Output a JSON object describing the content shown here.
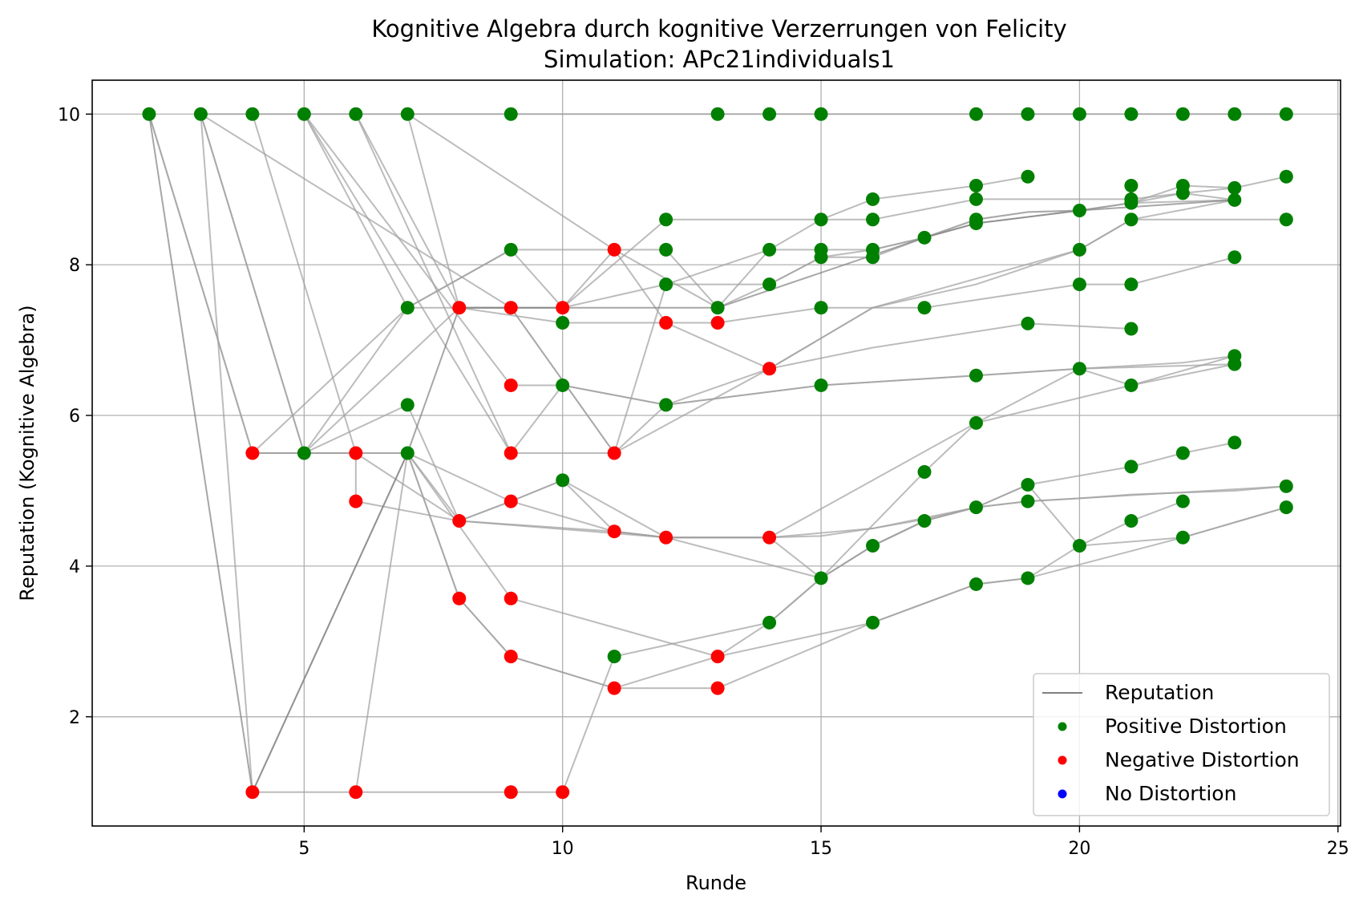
{
  "chart_data": {
    "type": "scatter",
    "title": "Kognitive Algebra durch kognitive Verzerrungen von Felicity",
    "subtitle": "Simulation: APc21individuals1",
    "xlabel": "Runde",
    "ylabel": "Reputation (Kognitive Algebra)",
    "xlim": [
      0.9,
      25.05
    ],
    "ylim": [
      0.55,
      10.45
    ],
    "xticks": [
      5,
      10,
      15,
      20,
      25
    ],
    "yticks": [
      2,
      4,
      6,
      8,
      10
    ],
    "grid": true,
    "legend_position": "bottom-right",
    "colors": {
      "reputation": "#808080",
      "positive": "#008000",
      "negative": "#ff0000",
      "none": "#0000ff"
    },
    "legend": [
      {
        "label": "Reputation",
        "kind": "line",
        "color": "#808080"
      },
      {
        "label": "Positive Distortion",
        "kind": "dot",
        "color": "#008000"
      },
      {
        "label": "Negative Distortion",
        "kind": "dot",
        "color": "#ff0000"
      },
      {
        "label": "No Distortion",
        "kind": "dot",
        "color": "#0000ff"
      }
    ],
    "trajectories": [
      [
        [
          2,
          10
        ],
        [
          4,
          5.5
        ],
        [
          7,
          7.43
        ],
        [
          9,
          8.2
        ],
        [
          11,
          8.2
        ],
        [
          12,
          8.2
        ],
        [
          13,
          7.43
        ],
        [
          14,
          8.2
        ],
        [
          15,
          8.6
        ],
        [
          16,
          8.87
        ],
        [
          18,
          9.05
        ],
        [
          19,
          9.17
        ]
      ],
      [
        [
          3,
          10
        ],
        [
          4,
          10
        ],
        [
          5,
          10
        ],
        [
          6,
          10
        ],
        [
          7,
          10
        ],
        [
          9,
          10
        ],
        [
          13,
          10
        ],
        [
          14,
          10
        ],
        [
          15,
          10
        ],
        [
          18,
          10
        ],
        [
          19,
          10
        ],
        [
          20,
          10
        ],
        [
          21,
          10
        ],
        [
          22,
          10
        ],
        [
          23,
          10
        ],
        [
          24,
          10
        ]
      ],
      [
        [
          2,
          10
        ],
        [
          4,
          5.5
        ],
        [
          6,
          5.5
        ],
        [
          8,
          4.6
        ],
        [
          9,
          4.86
        ],
        [
          10,
          5.14
        ],
        [
          12,
          4.38
        ],
        [
          14,
          4.38
        ],
        [
          15,
          4.4
        ],
        [
          16,
          4.5
        ],
        [
          17,
          4.62
        ],
        [
          18,
          4.78
        ],
        [
          19,
          4.86
        ],
        [
          20,
          4.9
        ],
        [
          21,
          4.95
        ],
        [
          23,
          5.0
        ],
        [
          24,
          5.06
        ]
      ],
      [
        [
          3,
          10
        ],
        [
          5,
          5.5
        ],
        [
          7,
          6.14
        ],
        [
          8,
          4.6
        ],
        [
          11,
          4.46
        ],
        [
          12,
          4.38
        ],
        [
          14,
          4.38
        ],
        [
          15,
          3.84
        ],
        [
          16,
          4.27
        ],
        [
          17,
          4.6
        ],
        [
          18,
          4.78
        ],
        [
          19,
          5.08
        ],
        [
          21,
          5.32
        ],
        [
          22,
          5.5
        ],
        [
          23,
          5.64
        ]
      ],
      [
        [
          3,
          10
        ],
        [
          4,
          1.0
        ],
        [
          6,
          1.0
        ],
        [
          9,
          1.0
        ],
        [
          10,
          1.0
        ],
        [
          11,
          2.8
        ],
        [
          14,
          3.25
        ],
        [
          15,
          3.84
        ],
        [
          16,
          4.27
        ],
        [
          17,
          4.6
        ]
      ],
      [
        [
          3,
          10
        ],
        [
          5,
          5.5
        ],
        [
          8,
          7.43
        ],
        [
          10,
          7.43
        ],
        [
          12,
          8.6
        ],
        [
          15,
          8.6
        ],
        [
          16,
          8.6
        ],
        [
          18,
          8.87
        ],
        [
          19,
          8.87
        ],
        [
          21,
          8.87
        ],
        [
          22,
          8.95
        ],
        [
          23,
          9.02
        ]
      ],
      [
        [
          4,
          10
        ],
        [
          6,
          5.5
        ],
        [
          7,
          5.5
        ],
        [
          8,
          3.57
        ],
        [
          9,
          2.8
        ],
        [
          11,
          2.38
        ],
        [
          13,
          2.8
        ],
        [
          14,
          3.25
        ],
        [
          15,
          3.84
        ],
        [
          16,
          4.27
        ],
        [
          17,
          4.6
        ],
        [
          18,
          4.78
        ],
        [
          19,
          5.08
        ],
        [
          20,
          4.27
        ],
        [
          21,
          4.6
        ],
        [
          22,
          4.86
        ]
      ],
      [
        [
          5,
          10
        ],
        [
          9,
          6.4
        ],
        [
          10,
          6.4
        ],
        [
          12,
          6.14
        ],
        [
          15,
          6.4
        ],
        [
          18,
          6.53
        ],
        [
          20,
          6.62
        ],
        [
          23,
          6.68
        ]
      ],
      [
        [
          5,
          10
        ],
        [
          7,
          7.43
        ],
        [
          9,
          7.43
        ],
        [
          11,
          5.5
        ],
        [
          12,
          7.74
        ],
        [
          14,
          7.74
        ],
        [
          15,
          8.1
        ],
        [
          16,
          8.2
        ],
        [
          17,
          8.36
        ],
        [
          18,
          8.55
        ],
        [
          20,
          8.72
        ],
        [
          21,
          8.82
        ],
        [
          23,
          8.86
        ]
      ],
      [
        [
          6,
          10
        ],
        [
          8,
          7.43
        ],
        [
          10,
          7.23
        ],
        [
          12,
          7.23
        ],
        [
          13,
          7.23
        ],
        [
          15,
          7.43
        ],
        [
          17,
          7.43
        ],
        [
          20,
          7.74
        ],
        [
          21,
          7.74
        ],
        [
          23,
          8.1
        ]
      ],
      [
        [
          6,
          10
        ],
        [
          9,
          5.5
        ],
        [
          10,
          6.4
        ],
        [
          12,
          6.14
        ],
        [
          15,
          6.4
        ],
        [
          18,
          6.53
        ],
        [
          20,
          6.62
        ],
        [
          22,
          6.7
        ],
        [
          23,
          6.79
        ]
      ],
      [
        [
          7,
          10
        ],
        [
          8,
          7.43
        ],
        [
          9,
          7.43
        ],
        [
          10,
          7.43
        ],
        [
          11,
          8.2
        ],
        [
          13,
          7.43
        ],
        [
          14,
          7.74
        ],
        [
          15,
          8.1
        ],
        [
          16,
          8.1
        ],
        [
          17,
          8.36
        ],
        [
          18,
          8.6
        ],
        [
          19,
          8.7
        ],
        [
          20,
          8.72
        ],
        [
          21,
          8.82
        ],
        [
          22,
          9.05
        ],
        [
          23,
          9.02
        ],
        [
          24,
          9.17
        ]
      ],
      [
        [
          5,
          10
        ],
        [
          9,
          5.5
        ],
        [
          11,
          5.5
        ],
        [
          12,
          6.14
        ],
        [
          14,
          6.62
        ],
        [
          16,
          6.9
        ],
        [
          19,
          7.22
        ],
        [
          21,
          7.15
        ]
      ],
      [
        [
          4,
          1.0
        ],
        [
          7,
          5.5
        ],
        [
          9,
          4.86
        ],
        [
          11,
          4.46
        ],
        [
          12,
          4.38
        ],
        [
          14,
          4.38
        ],
        [
          18,
          5.9
        ],
        [
          21,
          6.4
        ],
        [
          23,
          6.79
        ]
      ],
      [
        [
          7,
          5.5
        ],
        [
          9,
          3.57
        ],
        [
          13,
          2.8
        ],
        [
          16,
          3.25
        ],
        [
          18,
          3.76
        ],
        [
          19,
          3.84
        ],
        [
          20,
          4.27
        ],
        [
          22,
          4.38
        ],
        [
          24,
          4.78
        ]
      ],
      [
        [
          4,
          5.5
        ],
        [
          5,
          5.5
        ],
        [
          7,
          5.5
        ],
        [
          8,
          4.6
        ],
        [
          12,
          4.38
        ],
        [
          15,
          3.84
        ],
        [
          17,
          5.25
        ],
        [
          18,
          5.9
        ],
        [
          20,
          6.62
        ],
        [
          21,
          6.4
        ],
        [
          23,
          6.68
        ]
      ],
      [
        [
          6,
          1.0
        ],
        [
          7,
          5.5
        ],
        [
          8,
          3.57
        ],
        [
          9,
          2.8
        ],
        [
          11,
          2.38
        ],
        [
          13,
          2.38
        ],
        [
          16,
          3.25
        ],
        [
          18,
          3.76
        ],
        [
          19,
          3.84
        ],
        [
          22,
          4.38
        ],
        [
          24,
          4.78
        ]
      ],
      [
        [
          3,
          10
        ],
        [
          9,
          7.43
        ],
        [
          11,
          5.5
        ],
        [
          14,
          6.62
        ],
        [
          16,
          7.43
        ],
        [
          18,
          7.74
        ],
        [
          20,
          8.2
        ],
        [
          21,
          8.6
        ],
        [
          24,
          8.6
        ]
      ],
      [
        [
          4,
          5.5
        ],
        [
          5,
          5.5
        ],
        [
          7,
          7.43
        ],
        [
          9,
          8.2
        ],
        [
          10,
          7.43
        ],
        [
          12,
          7.74
        ],
        [
          14,
          8.2
        ],
        [
          15,
          8.2
        ],
        [
          16,
          8.2
        ],
        [
          17,
          8.36
        ],
        [
          18,
          8.6
        ],
        [
          19,
          8.7
        ],
        [
          20,
          8.72
        ],
        [
          21,
          8.82
        ],
        [
          22,
          8.95
        ],
        [
          23,
          8.86
        ]
      ],
      [
        [
          5,
          5.5
        ],
        [
          6,
          5.5
        ],
        [
          6,
          4.86
        ],
        [
          8,
          4.6
        ],
        [
          9,
          4.86
        ],
        [
          10,
          5.14
        ],
        [
          11,
          4.46
        ],
        [
          12,
          4.38
        ],
        [
          14,
          4.38
        ],
        [
          16,
          4.5
        ],
        [
          18,
          4.78
        ],
        [
          19,
          4.86
        ],
        [
          24,
          5.06
        ]
      ],
      [
        [
          7,
          10
        ],
        [
          11,
          8.2
        ],
        [
          12,
          7.23
        ],
        [
          14,
          6.62
        ],
        [
          16,
          7.43
        ],
        [
          20,
          8.2
        ],
        [
          21,
          8.6
        ],
        [
          23,
          8.86
        ]
      ]
    ],
    "reputation_line": [
      [
        2,
        10
      ],
      [
        4,
        1.0
      ],
      [
        7,
        5.5
      ],
      [
        8,
        7.43
      ],
      [
        13,
        7.43
      ],
      [
        17,
        8.36
      ],
      [
        18,
        8.55
      ],
      [
        20,
        8.72
      ],
      [
        23,
        8.86
      ]
    ],
    "positive_points": [
      [
        2,
        10
      ],
      [
        3,
        10
      ],
      [
        4,
        10
      ],
      [
        5,
        10
      ],
      [
        6,
        10
      ],
      [
        7,
        10
      ],
      [
        9,
        10
      ],
      [
        13,
        10
      ],
      [
        14,
        10
      ],
      [
        15,
        10
      ],
      [
        18,
        10
      ],
      [
        19,
        10
      ],
      [
        20,
        10
      ],
      [
        21,
        10
      ],
      [
        22,
        10
      ],
      [
        23,
        10
      ],
      [
        24,
        10
      ],
      [
        19,
        9.17
      ],
      [
        24,
        9.17
      ],
      [
        18,
        9.05
      ],
      [
        21,
        9.05
      ],
      [
        22,
        9.05
      ],
      [
        23,
        9.02
      ],
      [
        22,
        8.95
      ],
      [
        16,
        8.87
      ],
      [
        18,
        8.87
      ],
      [
        21,
        8.87
      ],
      [
        21,
        8.82
      ],
      [
        23,
        8.86
      ],
      [
        20,
        8.72
      ],
      [
        12,
        8.6
      ],
      [
        15,
        8.6
      ],
      [
        16,
        8.6
      ],
      [
        18,
        8.6
      ],
      [
        18,
        8.55
      ],
      [
        21,
        8.6
      ],
      [
        24,
        8.6
      ],
      [
        17,
        8.36
      ],
      [
        9,
        8.2
      ],
      [
        12,
        8.2
      ],
      [
        14,
        8.2
      ],
      [
        15,
        8.2
      ],
      [
        16,
        8.2
      ],
      [
        20,
        8.2
      ],
      [
        15,
        8.1
      ],
      [
        16,
        8.1
      ],
      [
        23,
        8.1
      ],
      [
        12,
        7.74
      ],
      [
        14,
        7.74
      ],
      [
        20,
        7.74
      ],
      [
        21,
        7.74
      ],
      [
        7,
        7.43
      ],
      [
        13,
        7.43
      ],
      [
        15,
        7.43
      ],
      [
        17,
        7.43
      ],
      [
        10,
        7.23
      ],
      [
        19,
        7.22
      ],
      [
        21,
        7.15
      ],
      [
        23,
        6.79
      ],
      [
        23,
        6.68
      ],
      [
        20,
        6.62
      ],
      [
        18,
        6.53
      ],
      [
        10,
        6.4
      ],
      [
        15,
        6.4
      ],
      [
        21,
        6.4
      ],
      [
        7,
        6.14
      ],
      [
        12,
        6.14
      ],
      [
        18,
        5.9
      ],
      [
        23,
        5.64
      ],
      [
        5,
        5.5
      ],
      [
        7,
        5.5
      ],
      [
        22,
        5.5
      ],
      [
        21,
        5.32
      ],
      [
        17,
        5.25
      ],
      [
        10,
        5.14
      ],
      [
        19,
        5.08
      ],
      [
        24,
        5.06
      ],
      [
        19,
        4.86
      ],
      [
        22,
        4.86
      ],
      [
        18,
        4.78
      ],
      [
        24,
        4.78
      ],
      [
        17,
        4.6
      ],
      [
        21,
        4.6
      ],
      [
        22,
        4.38
      ],
      [
        16,
        4.27
      ],
      [
        20,
        4.27
      ],
      [
        15,
        3.84
      ],
      [
        19,
        3.84
      ],
      [
        18,
        3.76
      ],
      [
        14,
        3.25
      ],
      [
        16,
        3.25
      ],
      [
        11,
        2.8
      ]
    ],
    "negative_points": [
      [
        11,
        8.2
      ],
      [
        8,
        7.43
      ],
      [
        9,
        7.43
      ],
      [
        10,
        7.43
      ],
      [
        12,
        7.23
      ],
      [
        13,
        7.23
      ],
      [
        14,
        6.62
      ],
      [
        9,
        6.4
      ],
      [
        4,
        5.5
      ],
      [
        6,
        5.5
      ],
      [
        9,
        5.5
      ],
      [
        11,
        5.5
      ],
      [
        6,
        4.86
      ],
      [
        9,
        4.86
      ],
      [
        8,
        4.6
      ],
      [
        11,
        4.46
      ],
      [
        12,
        4.38
      ],
      [
        14,
        4.38
      ],
      [
        8,
        3.57
      ],
      [
        9,
        3.57
      ],
      [
        9,
        2.8
      ],
      [
        13,
        2.8
      ],
      [
        11,
        2.38
      ],
      [
        13,
        2.38
      ],
      [
        4,
        1.0
      ],
      [
        6,
        1.0
      ],
      [
        9,
        1.0
      ],
      [
        10,
        1.0
      ]
    ],
    "none_points": []
  }
}
